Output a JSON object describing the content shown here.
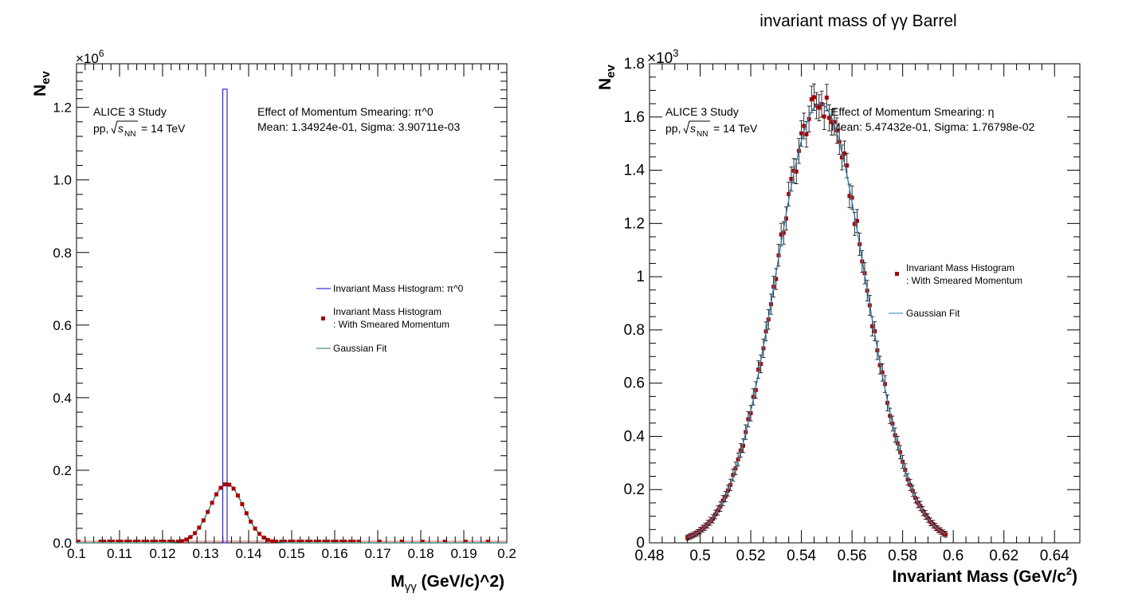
{
  "colors": {
    "histogram": "#0000cc",
    "smeared_marker": "#aa0000",
    "fit_left": "#1f6f5f",
    "fit_right": "#2f7fb0",
    "frame": "#000000"
  },
  "chart_data": [
    {
      "type": "bar",
      "title": "",
      "xlabel_main": "M",
      "xlabel_sub": "γγ",
      "xlabel_rest": "(GeV/c)^2)",
      "ylabel_main": "N",
      "ylabel_sub": "ev",
      "xlim": [
        0.1,
        0.2
      ],
      "ylim": [
        0,
        1.32
      ],
      "y_multiplier": "×10",
      "y_multiplier_exp": "6",
      "x_ticks": [
        "0.1",
        "0.11",
        "0.12",
        "0.13",
        "0.14",
        "0.15",
        "0.16",
        "0.17",
        "0.18",
        "0.19",
        "0.2"
      ],
      "y_ticks": [
        "0.0",
        "0.2",
        "0.4",
        "0.6",
        "0.8",
        "1.0",
        "1.2"
      ],
      "annotation_left": [
        "ALICE 3 Study",
        "pp,",
        "s",
        "NN",
        "= 14 TeV"
      ],
      "annotation_right": [
        "Effect of Momentum Smearing: π^0",
        "Mean: 1.34924e-01, Sigma: 3.90711e-03"
      ],
      "legend": [
        {
          "label": "Invariant Mass Histogram: π^0",
          "style": "line"
        },
        {
          "label": "Invariant Mass Histogram",
          "label2": ": With Smeared Momentum",
          "style": "marker"
        },
        {
          "label": "Gaussian Fit",
          "style": "line"
        }
      ],
      "histogram": {
        "bin_low": 0.134,
        "bin_high": 0.135,
        "value": 1.25
      },
      "gaussian": {
        "amplitude": 0.162,
        "mean": 0.134924,
        "sigma": 0.00390711
      },
      "smeared_points": {
        "x_start": 0.1005,
        "x_end": 0.1995,
        "step": 0.001
      }
    },
    {
      "type": "scatter",
      "title": "invariant mass of γγ Barrel",
      "xlabel_main": "Invariant Mass (GeV/c",
      "xlabel_sup": "2",
      "xlabel_end": ")",
      "ylabel_main": "N",
      "ylabel_sub": "ev",
      "xlim": [
        0.48,
        0.65
      ],
      "ylim": [
        0,
        1.8
      ],
      "y_multiplier": "×10",
      "y_multiplier_exp": "3",
      "x_ticks": [
        "0.48",
        "0.5",
        "0.52",
        "0.54",
        "0.56",
        "0.58",
        "0.6",
        "0.62",
        "0.64"
      ],
      "y_ticks": [
        "0",
        "0.2",
        "0.4",
        "0.6",
        "0.8",
        "1",
        "1.2",
        "1.4",
        "1.6",
        "1.8"
      ],
      "annotation_left": [
        "ALICE 3 Study",
        "pp,",
        "s",
        "NN",
        "= 14 TeV"
      ],
      "annotation_right": [
        "Effect of Momentum Smearing: η",
        "Mean: 5.47432e-01, Sigma: 1.76798e-02"
      ],
      "legend": [
        {
          "label": "Invariant Mass Histogram",
          "label2": ": With Smeared Momentum",
          "style": "marker"
        },
        {
          "label": "Gaussian Fit",
          "style": "line"
        }
      ],
      "gaussian": {
        "amplitude": 1.65,
        "mean": 0.547432,
        "sigma": 0.0176798
      },
      "points": {
        "x_start": 0.495,
        "x_end": 0.597,
        "step": 0.001
      }
    }
  ]
}
